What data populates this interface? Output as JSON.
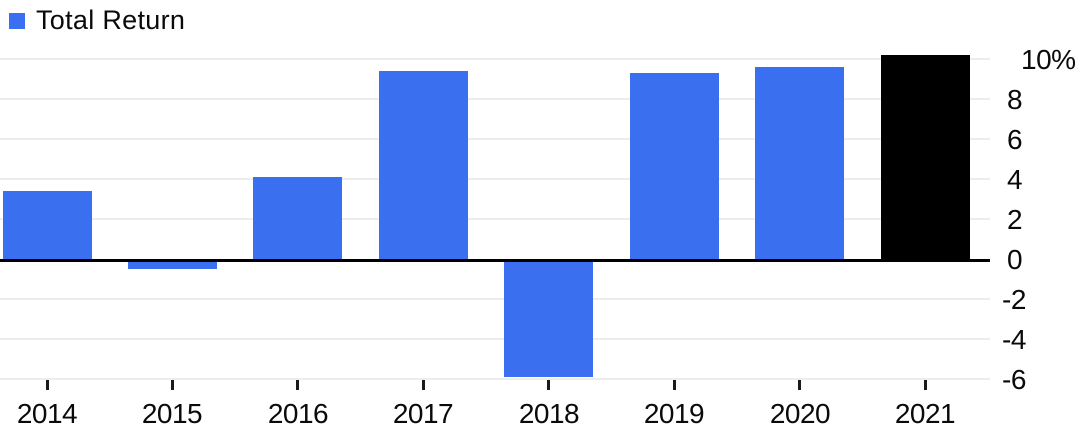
{
  "chart_data": {
    "type": "bar",
    "title": "",
    "legend": [
      {
        "label": "Total Return",
        "color": "#3A6FF0"
      }
    ],
    "legend_position": "top-left",
    "categories": [
      "2014",
      "2015",
      "2016",
      "2017",
      "2018",
      "2019",
      "2020",
      "2021"
    ],
    "series": [
      {
        "name": "Total Return",
        "values": [
          3.4,
          -0.5,
          4.1,
          9.4,
          -5.9,
          9.3,
          9.6,
          10.2
        ]
      }
    ],
    "bar_colors": [
      "#3A6FF0",
      "#3A6FF0",
      "#3A6FF0",
      "#3A6FF0",
      "#3A6FF0",
      "#3A6FF0",
      "#3A6FF0",
      "#000000"
    ],
    "highlight_category": "2021",
    "xlabel": "",
    "ylabel": "",
    "y_axis": {
      "side": "right",
      "unit": "%",
      "range": [
        -6.6,
        11.0
      ],
      "ticks": [
        {
          "label": "10%",
          "value": 10
        },
        {
          "label": "8",
          "value": 8
        },
        {
          "label": "6",
          "value": 6
        },
        {
          "label": "4",
          "value": 4
        },
        {
          "label": "2",
          "value": 2
        },
        {
          "label": "0",
          "value": 0
        },
        {
          "label": "-2",
          "value": -2
        },
        {
          "label": "-4",
          "value": -4
        },
        {
          "label": "-6",
          "value": -6
        }
      ]
    },
    "grid": "horizontal",
    "colors": {
      "bar_primary": "#3A6FF0",
      "bar_highlight": "#000000",
      "gridline": "#ededed",
      "axis_line": "#000000",
      "text": "#0a0a0a",
      "background": "#ffffff"
    }
  }
}
